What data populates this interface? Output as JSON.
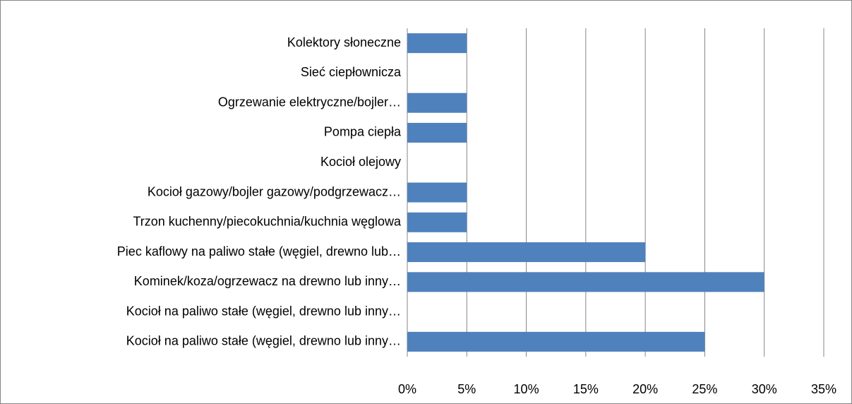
{
  "chart_data": {
    "type": "bar",
    "orientation": "horizontal",
    "categories": [
      "Kolektory słoneczne",
      "Sieć ciepłownicza",
      "Ogrzewanie elektryczne/bojler…",
      "Pompa ciepła",
      "Kocioł olejowy",
      "Kocioł gazowy/bojler gazowy/podgrzewacz…",
      "Trzon kuchenny/piecokuchnia/kuchnia węglowa",
      "Piec kaflowy na paliwo stałe (węgiel, drewno lub…",
      "Kominek/koza/ogrzewacz na drewno lub inny…",
      "Kocioł na paliwo stałe (węgiel, drewno lub inny…",
      "Kocioł na paliwo stałe (węgiel, drewno lub inny…"
    ],
    "values": [
      5,
      0,
      5,
      5,
      0,
      5,
      5,
      20,
      30,
      0,
      25
    ],
    "color": "#4f81bd",
    "xlim": [
      0,
      35
    ],
    "xticks": [
      {
        "value": 0,
        "label": "0%"
      },
      {
        "value": 5,
        "label": "5%"
      },
      {
        "value": 10,
        "label": "10%"
      },
      {
        "value": 15,
        "label": "15%"
      },
      {
        "value": 20,
        "label": "20%"
      },
      {
        "value": 25,
        "label": "25%"
      },
      {
        "value": 30,
        "label": "30%"
      },
      {
        "value": 35,
        "label": "35%"
      }
    ],
    "grid": true
  }
}
